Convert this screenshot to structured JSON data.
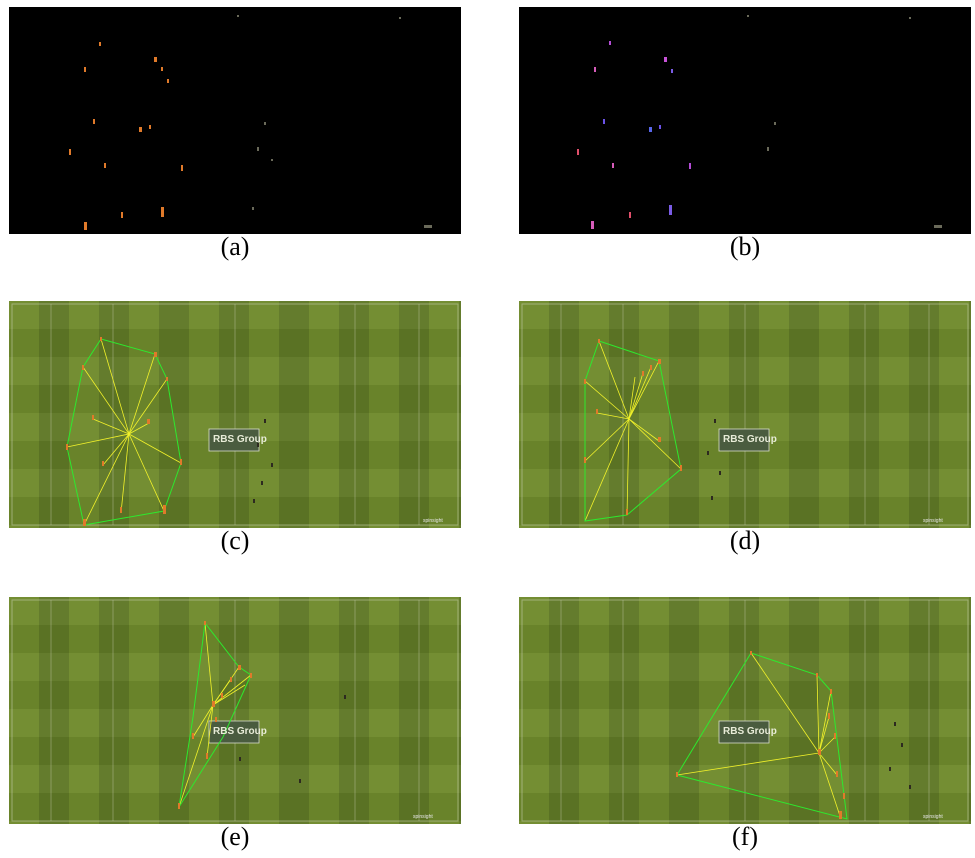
{
  "panels": [
    {
      "id": "a",
      "caption": "(a)",
      "kind": "mask-orange"
    },
    {
      "id": "b",
      "caption": "(b)",
      "kind": "mask-multi"
    },
    {
      "id": "c",
      "caption": "(c)",
      "kind": "field",
      "logo": "RBS Group",
      "brand": "spinsight"
    },
    {
      "id": "d",
      "caption": "(d)",
      "kind": "field",
      "logo": "RBS Group",
      "brand": "spinsight"
    },
    {
      "id": "e",
      "caption": "(e)",
      "kind": "field",
      "logo": "RBS Group",
      "brand": "spinsight"
    },
    {
      "id": "f",
      "caption": "(f)",
      "kind": "field",
      "logo": "RBS Group",
      "brand": "spinsight"
    }
  ],
  "colors": {
    "hull": "#2ee82e",
    "spoke": "#f2f22a",
    "pitch_light": "#6f8a2c",
    "pitch_dark": "#5d7625",
    "mask_bg": "#000000"
  }
}
